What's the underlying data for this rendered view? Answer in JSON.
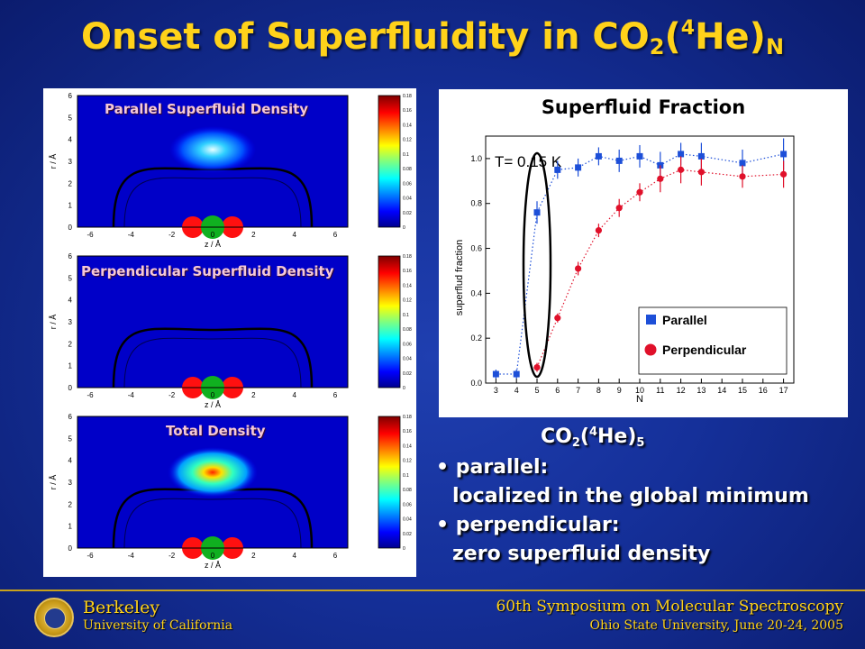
{
  "slide": {
    "title_main": "Onset of Superfluidity in CO",
    "title_sub2": "2",
    "title_paren_open": "(",
    "title_sup4": "4",
    "title_he": "He)",
    "title_subN": "N"
  },
  "left_plots": {
    "plots": [
      {
        "title": "Parallel Superfluid Density"
      },
      {
        "title": "Perpendicular Superfluid Density"
      },
      {
        "title": "Total Density"
      }
    ],
    "y_axis_label": "r / Å",
    "x_axis_label": "z / Å",
    "y_ticks": [
      "0",
      "1",
      "2",
      "3",
      "4",
      "5",
      "6"
    ],
    "x_ticks": [
      "-6",
      "-4",
      "-2",
      "0",
      "2",
      "4",
      "6"
    ],
    "colorbar_ticks": [
      "0",
      "0.02",
      "0.04",
      "0.06",
      "0.08",
      "0.1",
      "0.12",
      "0.14",
      "0.16",
      "0.18"
    ]
  },
  "chart_data": {
    "type": "scatter",
    "title": "Superfluid Fraction",
    "annotation": "T= 0.15 K",
    "xlabel": "N",
    "ylabel": "superflud fraction",
    "xlim": [
      2.5,
      17.5
    ],
    "ylim": [
      0,
      1.1
    ],
    "x_ticks": [
      "3",
      "4",
      "5",
      "6",
      "7",
      "8",
      "9",
      "10",
      "11",
      "12",
      "13",
      "14",
      "15",
      "16",
      "17"
    ],
    "y_ticks": [
      "0.0",
      "0.2",
      "0.4",
      "0.6",
      "0.8",
      "1.0"
    ],
    "legend_position": "bottom-right",
    "series": [
      {
        "name": "Parallel",
        "color": "#1d4fd8",
        "marker": "square",
        "points": [
          [
            3,
            0.04
          ],
          [
            4,
            0.04
          ],
          [
            5,
            0.76
          ],
          [
            6,
            0.95
          ],
          [
            7,
            0.96
          ],
          [
            8,
            1.01
          ],
          [
            9,
            0.99
          ],
          [
            10,
            1.01
          ],
          [
            11,
            0.97
          ],
          [
            12,
            1.02
          ],
          [
            13,
            1.01
          ],
          [
            15,
            0.98
          ],
          [
            17,
            1.02
          ]
        ],
        "errors": [
          0.02,
          0.02,
          0.05,
          0.04,
          0.04,
          0.04,
          0.05,
          0.05,
          0.06,
          0.05,
          0.06,
          0.06,
          0.07
        ]
      },
      {
        "name": "Perpendicular",
        "color": "#e0102a",
        "marker": "circle",
        "points": [
          [
            5,
            0.07
          ],
          [
            6,
            0.29
          ],
          [
            7,
            0.51
          ],
          [
            8,
            0.68
          ],
          [
            9,
            0.78
          ],
          [
            10,
            0.85
          ],
          [
            11,
            0.91
          ],
          [
            12,
            0.95
          ],
          [
            13,
            0.94
          ],
          [
            15,
            0.92
          ],
          [
            17,
            0.93
          ]
        ],
        "errors": [
          0.02,
          0.02,
          0.03,
          0.03,
          0.04,
          0.04,
          0.06,
          0.06,
          0.06,
          0.05,
          0.06
        ]
      }
    ]
  },
  "caption": {
    "co2_main": "CO",
    "co2_sub2": "2",
    "co2_paren": "(",
    "co2_sup4": "4",
    "co2_he": "He)",
    "co2_sub5": "5",
    "bullet1": "• parallel:",
    "bullet1_detail": "localized in the global minimum",
    "bullet2": "• perpendicular:",
    "bullet2_detail": "zero superfluid density"
  },
  "footer": {
    "left_line1": "Berkeley",
    "left_line2": "University of California",
    "right_line1": "60th Symposium on Molecular Spectroscopy",
    "right_line2": "Ohio State University, June 20-24, 2005"
  }
}
